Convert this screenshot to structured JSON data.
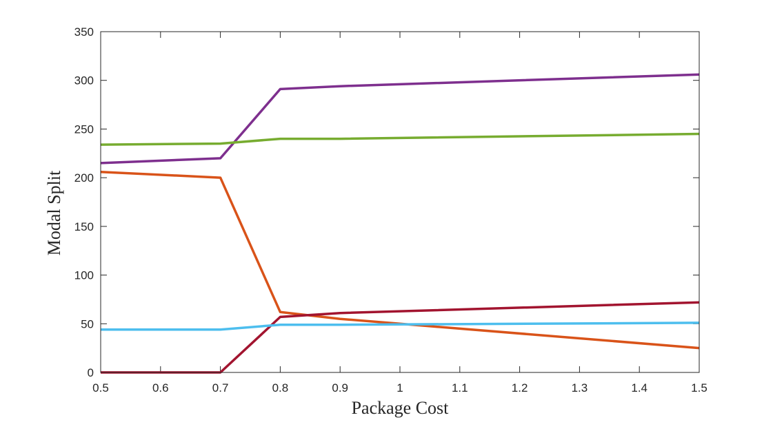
{
  "chart_data": {
    "type": "line",
    "title": "",
    "xlabel": "Package Cost",
    "ylabel": "Modal Split",
    "xlim": [
      0.5,
      1.5
    ],
    "ylim": [
      0,
      350
    ],
    "x_ticks": [
      0.5,
      0.6,
      0.7,
      0.8,
      0.9,
      1,
      1.1,
      1.2,
      1.3,
      1.4,
      1.5
    ],
    "y_ticks": [
      0,
      50,
      100,
      150,
      200,
      250,
      300,
      350
    ],
    "x_tick_labels": [
      "0.5",
      "0.6",
      "0.7",
      "0.8",
      "0.9",
      "1",
      "1.1",
      "1.2",
      "1.3",
      "1.4",
      "1.5"
    ],
    "y_tick_labels": [
      "0",
      "50",
      "100",
      "150",
      "200",
      "250",
      "300",
      "350"
    ],
    "grid": false,
    "series": [
      {
        "name": "purple",
        "color": "#7E2F8E",
        "x": [
          0.5,
          0.7,
          0.8,
          0.9,
          1.5
        ],
        "y": [
          215,
          220,
          291,
          294,
          306
        ]
      },
      {
        "name": "green",
        "color": "#77AC30",
        "x": [
          0.5,
          0.7,
          0.8,
          0.9,
          1.5
        ],
        "y": [
          234,
          235,
          240,
          240,
          245
        ]
      },
      {
        "name": "orange",
        "color": "#D95319",
        "x": [
          0.5,
          0.7,
          0.8,
          0.9,
          1,
          1.5
        ],
        "y": [
          206,
          200,
          62,
          55,
          50,
          25
        ]
      },
      {
        "name": "dark-red",
        "color": "#A2142F",
        "x": [
          0.5,
          0.7,
          0.8,
          0.9,
          1.5
        ],
        "y": [
          0,
          0,
          57,
          61,
          72
        ]
      },
      {
        "name": "light-blue",
        "color": "#4DBEEE",
        "x": [
          0.5,
          0.7,
          0.8,
          0.9,
          1.5
        ],
        "y": [
          44,
          44,
          49,
          49,
          51
        ]
      }
    ]
  }
}
